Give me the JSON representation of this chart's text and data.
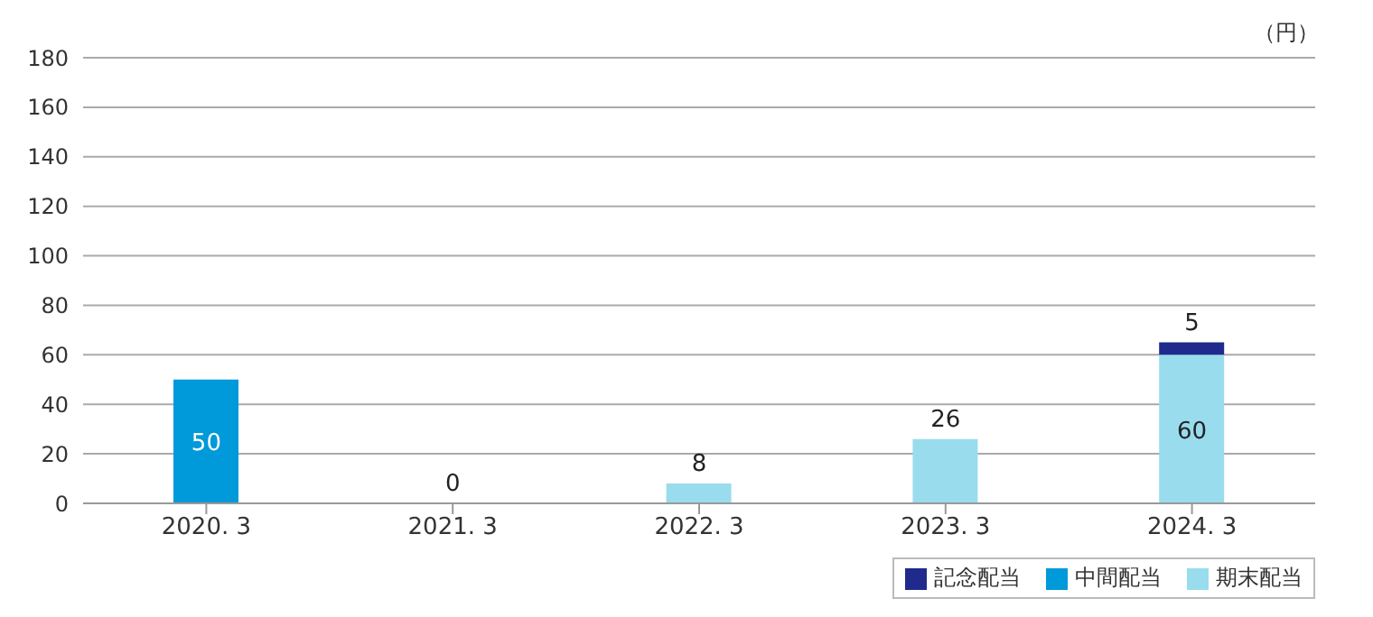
{
  "chart_data": {
    "type": "bar",
    "stacked": true,
    "ylabel": "（円）",
    "categories": [
      "2020. 3",
      "2021. 3",
      "2022. 3",
      "2023. 3",
      "2024. 3"
    ],
    "series": [
      {
        "name": "中間配当",
        "color": "#0099d9",
        "values": [
          50,
          null,
          null,
          null,
          null
        ],
        "value_labels": [
          "50",
          null,
          null,
          null,
          null
        ]
      },
      {
        "name": "期末配当",
        "color": "#99dcee",
        "values": [
          null,
          0,
          8,
          26,
          60
        ],
        "value_labels": [
          null,
          "0",
          "8",
          "26",
          "60"
        ]
      },
      {
        "name": "記念配当",
        "color": "#1f2a8c",
        "values": [
          null,
          null,
          null,
          null,
          5
        ],
        "value_labels": [
          null,
          null,
          null,
          null,
          "5"
        ]
      }
    ],
    "ylim": [
      0,
      180
    ],
    "yticks": [
      0,
      20,
      40,
      60,
      80,
      100,
      120,
      140,
      160,
      180
    ],
    "grid": "y",
    "legend": "bottom right"
  }
}
